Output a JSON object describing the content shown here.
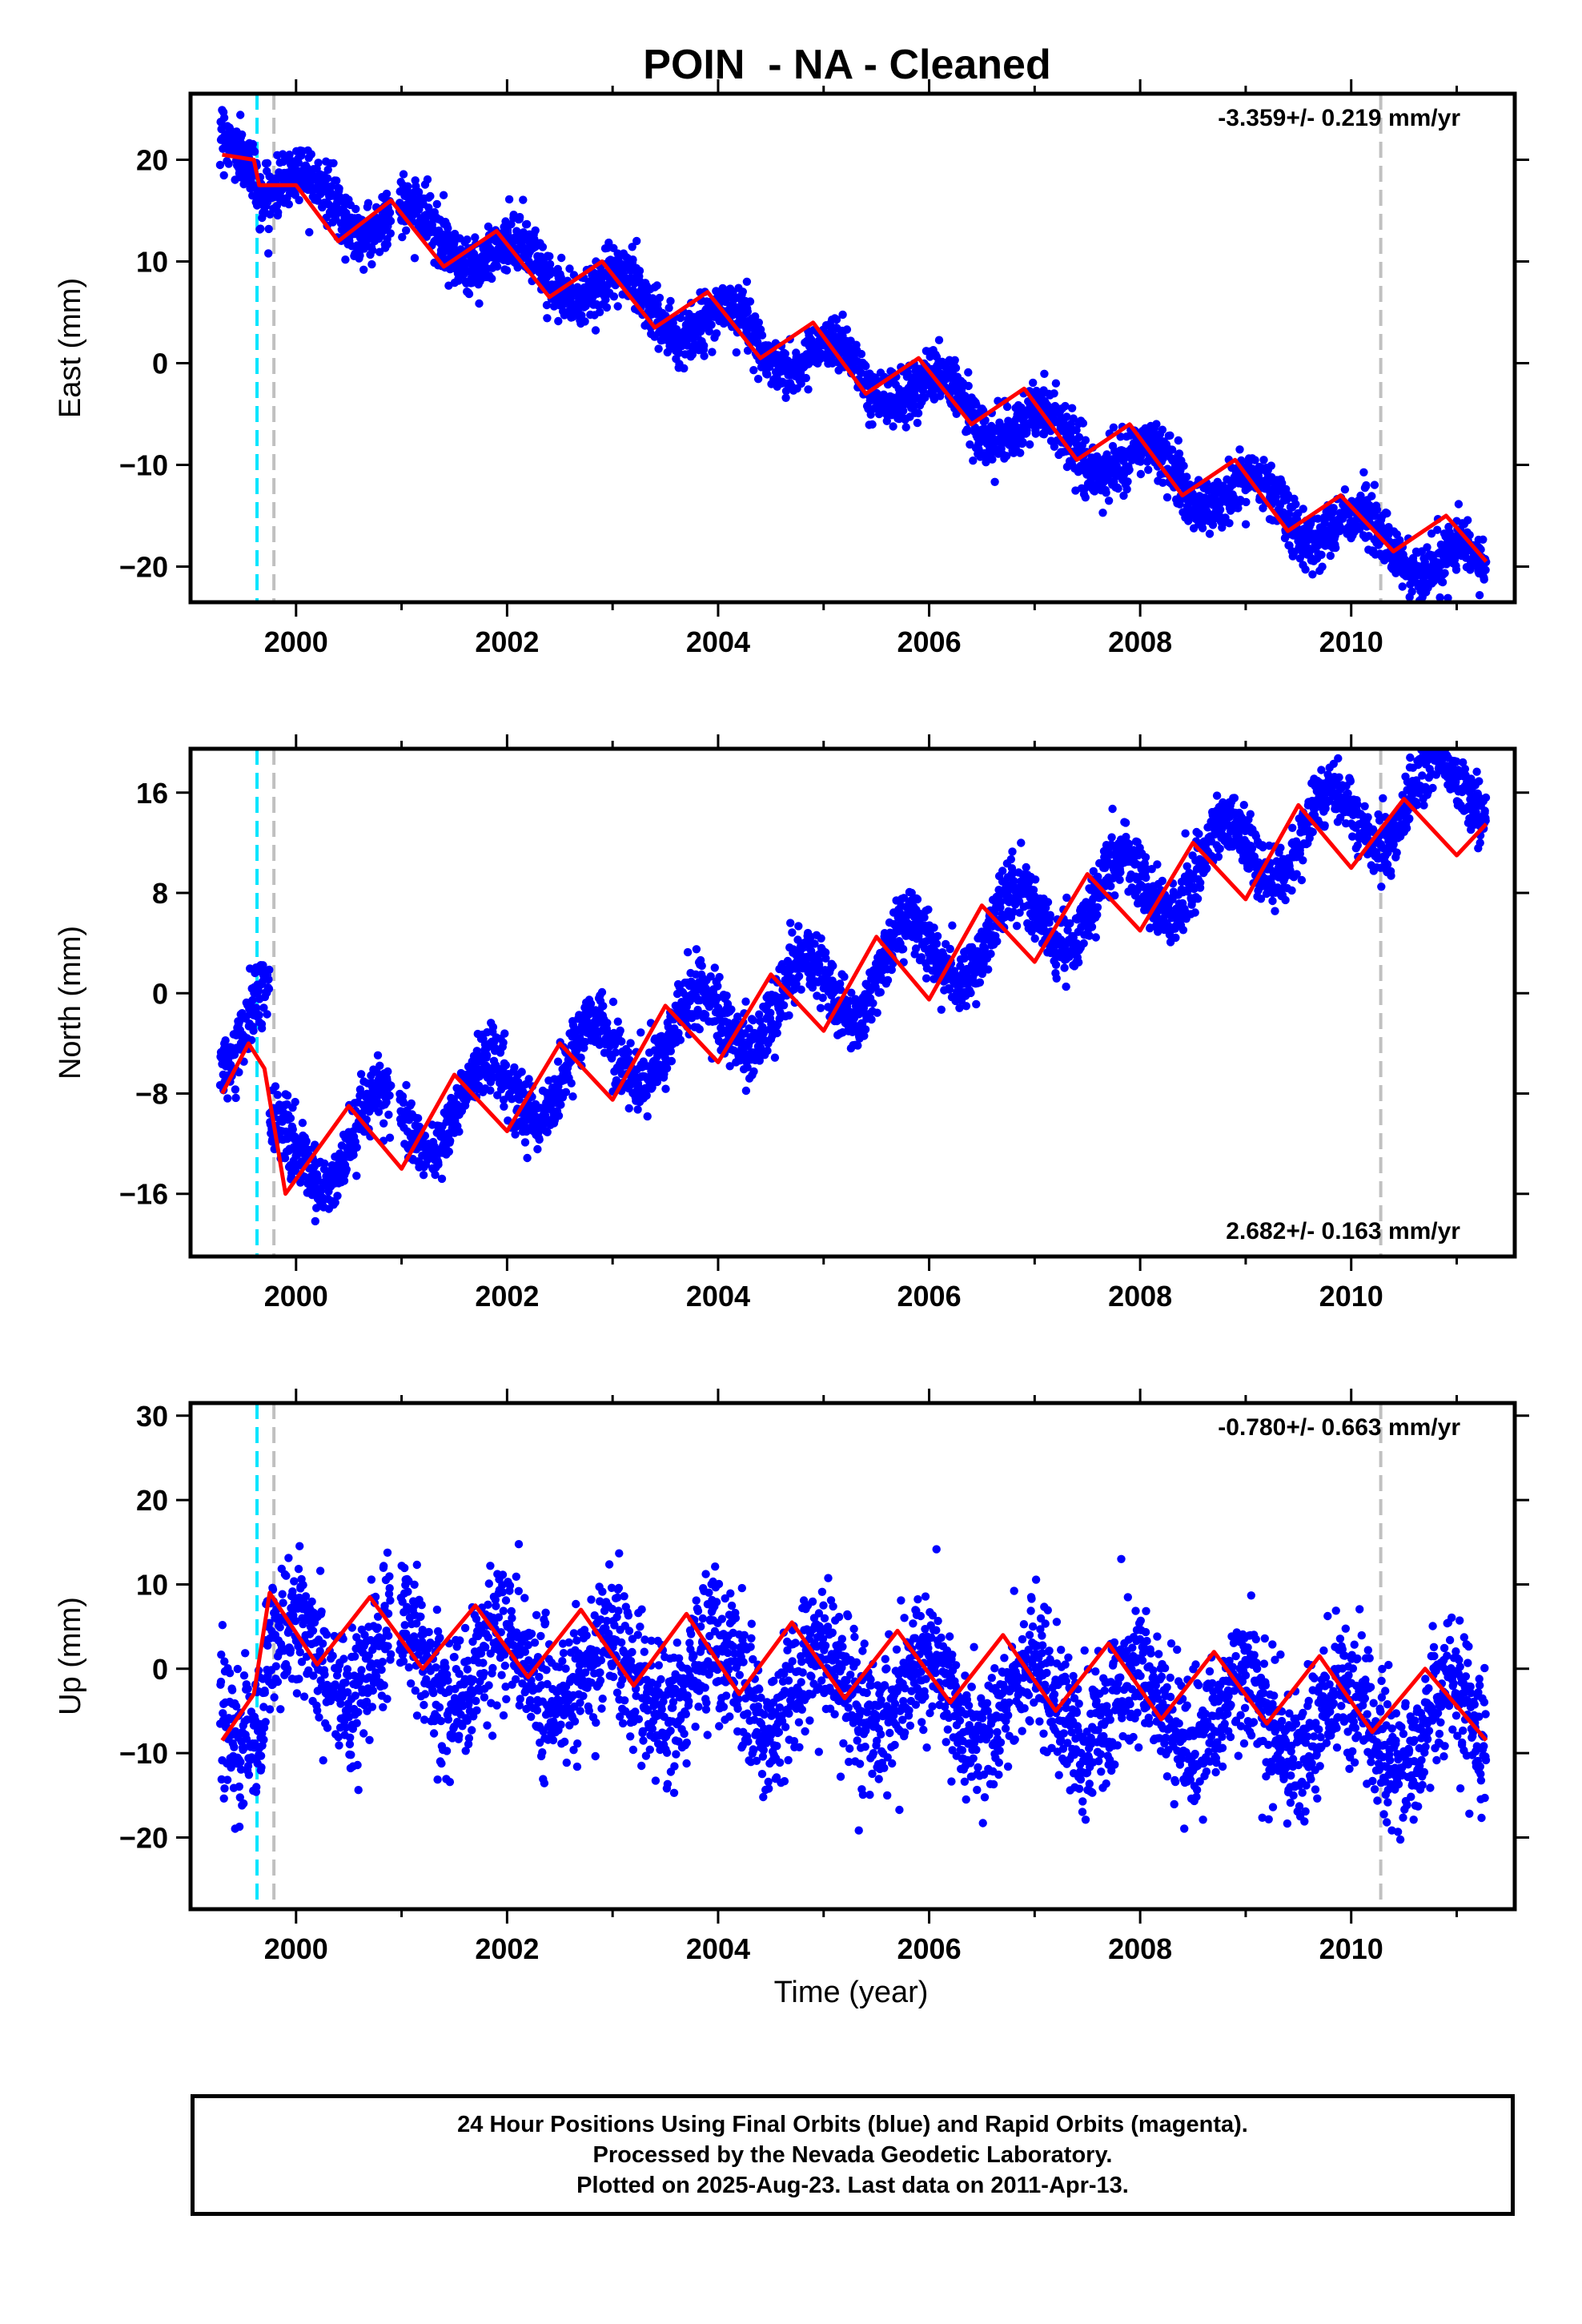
{
  "title": "POIN  - NA - Cleaned",
  "xlabel": "Time (year)",
  "caption": [
    "24 Hour Positions Using Final Orbits (blue) and Rapid Orbits (magenta).",
    "Processed by the Nevada Geodetic Laboratory.",
    "Plotted on 2025-Aug-23. Last data on 2011-Apr-13."
  ],
  "colors": {
    "points": "#0000ff",
    "model": "#ff0000",
    "cyan_line": "#00e5ff",
    "gray_line": "#c0c0c0",
    "frame": "#000000"
  },
  "chart_data": [
    {
      "type": "scatter",
      "component": "East",
      "ylabel": "East (mm)",
      "xlim": [
        1999.0,
        2011.55
      ],
      "ylim": [
        -23.5,
        26.5
      ],
      "xticks": [
        2000,
        2002,
        2004,
        2006,
        2008,
        2010
      ],
      "yticks": [
        -20,
        -10,
        0,
        10,
        20
      ],
      "rate_text": "-3.359+/- 0.219 mm/yr",
      "rate_position": "top-right",
      "cyan_marker_x": 1999.63,
      "gray_marker_x": [
        1999.79,
        2010.28
      ],
      "data_range": [
        1999.28,
        2011.28
      ],
      "model": {
        "intercept_at_2000": 17.0,
        "rate": -3.359,
        "annual_amplitude": 2.2,
        "annual_phase_year": 0.85,
        "steps": [
          {
            "x": 1999.63,
            "dy": -3.0
          }
        ],
        "scatter_std": 1.4
      },
      "model_curve": {
        "x": [
          1999.3,
          1999.6,
          1999.65,
          2000.0,
          2000.4,
          2000.9,
          2001.4,
          2001.9,
          2002.4,
          2002.9,
          2003.4,
          2003.9,
          2004.4,
          2004.9,
          2005.4,
          2005.9,
          2006.4,
          2006.9,
          2007.4,
          2007.9,
          2008.4,
          2008.9,
          2009.4,
          2009.9,
          2010.4,
          2010.9,
          2011.28
        ],
        "y": [
          20.5,
          20.0,
          17.5,
          17.5,
          12.0,
          16.0,
          9.5,
          13.0,
          6.5,
          10.0,
          3.5,
          7.0,
          0.5,
          4.0,
          -3.0,
          0.5,
          -6.0,
          -2.5,
          -9.5,
          -6.0,
          -13.0,
          -9.5,
          -16.5,
          -13.0,
          -18.5,
          -15.0,
          -19.5
        ]
      }
    },
    {
      "type": "scatter",
      "component": "North",
      "ylabel": "North (mm)",
      "xlim": [
        1999.0,
        2011.55
      ],
      "ylim": [
        -21.0,
        19.5
      ],
      "xticks": [
        2000,
        2002,
        2004,
        2006,
        2008,
        2010
      ],
      "yticks": [
        -16,
        -8,
        0,
        8,
        16
      ],
      "rate_text": "2.682+/- 0.163 mm/yr",
      "rate_position": "bottom-right",
      "cyan_marker_x": 1999.63,
      "gray_marker_x": [
        1999.79,
        2010.28
      ],
      "data_range": [
        1999.28,
        2011.28
      ],
      "model": {
        "intercept_at_2000": -13.0,
        "rate": 2.682,
        "annual_amplitude": 3.0,
        "annual_phase_year": 0.55,
        "steps": [
          {
            "x": 1999.75,
            "dy": -12.0
          }
        ],
        "scatter_std": 1.3
      },
      "model_curve": {
        "x": [
          1999.3,
          1999.55,
          1999.7,
          1999.9,
          2000.5,
          2001.0,
          2001.5,
          2002.0,
          2002.5,
          2003.0,
          2003.5,
          2004.0,
          2004.5,
          2005.0,
          2005.5,
          2006.0,
          2006.5,
          2007.0,
          2007.5,
          2008.0,
          2008.5,
          2009.0,
          2009.5,
          2010.0,
          2010.5,
          2011.0,
          2011.28
        ],
        "y": [
          -8.0,
          -4.0,
          -6.0,
          -16.0,
          -9.0,
          -14.0,
          -6.5,
          -11.0,
          -4.0,
          -8.5,
          -1.0,
          -5.5,
          1.5,
          -3.0,
          4.5,
          -0.5,
          7.0,
          2.5,
          9.5,
          5.0,
          12.0,
          7.5,
          15.0,
          10.0,
          15.5,
          11.0,
          13.5
        ]
      }
    },
    {
      "type": "scatter",
      "component": "Up",
      "ylabel": "Up (mm)",
      "xlim": [
        1999.0,
        2011.55
      ],
      "ylim": [
        -28.5,
        31.5
      ],
      "xticks": [
        2000,
        2002,
        2004,
        2006,
        2008,
        2010
      ],
      "yticks": [
        -20,
        -10,
        0,
        10,
        20,
        30
      ],
      "rate_text": "-0.780+/- 0.663 mm/yr",
      "rate_position": "top-right",
      "cyan_marker_x": 1999.63,
      "gray_marker_x": [
        1999.79,
        2010.28
      ],
      "data_range": [
        1999.28,
        2011.28
      ],
      "model": {
        "intercept_at_2000": 1.5,
        "rate": -0.78,
        "annual_amplitude": 4.5,
        "annual_phase_year": 0.72,
        "steps": [
          {
            "x": 1999.7,
            "dy": 6.0
          }
        ],
        "scatter_std": 4.0
      },
      "model_curve": {
        "x": [
          1999.3,
          1999.6,
          1999.75,
          2000.2,
          2000.7,
          2001.2,
          2001.7,
          2002.2,
          2002.7,
          2003.2,
          2003.7,
          2004.2,
          2004.7,
          2005.2,
          2005.7,
          2006.2,
          2006.7,
          2007.2,
          2007.7,
          2008.2,
          2008.7,
          2009.2,
          2009.7,
          2010.2,
          2010.7,
          2011.28
        ],
        "y": [
          -8.5,
          -3.0,
          9.0,
          0.5,
          8.5,
          0.0,
          7.5,
          -1.0,
          7.0,
          -2.0,
          6.5,
          -3.0,
          5.5,
          -3.5,
          4.5,
          -4.0,
          4.0,
          -5.0,
          3.0,
          -6.0,
          2.0,
          -6.5,
          1.5,
          -7.5,
          0.0,
          -8.5
        ]
      }
    }
  ]
}
